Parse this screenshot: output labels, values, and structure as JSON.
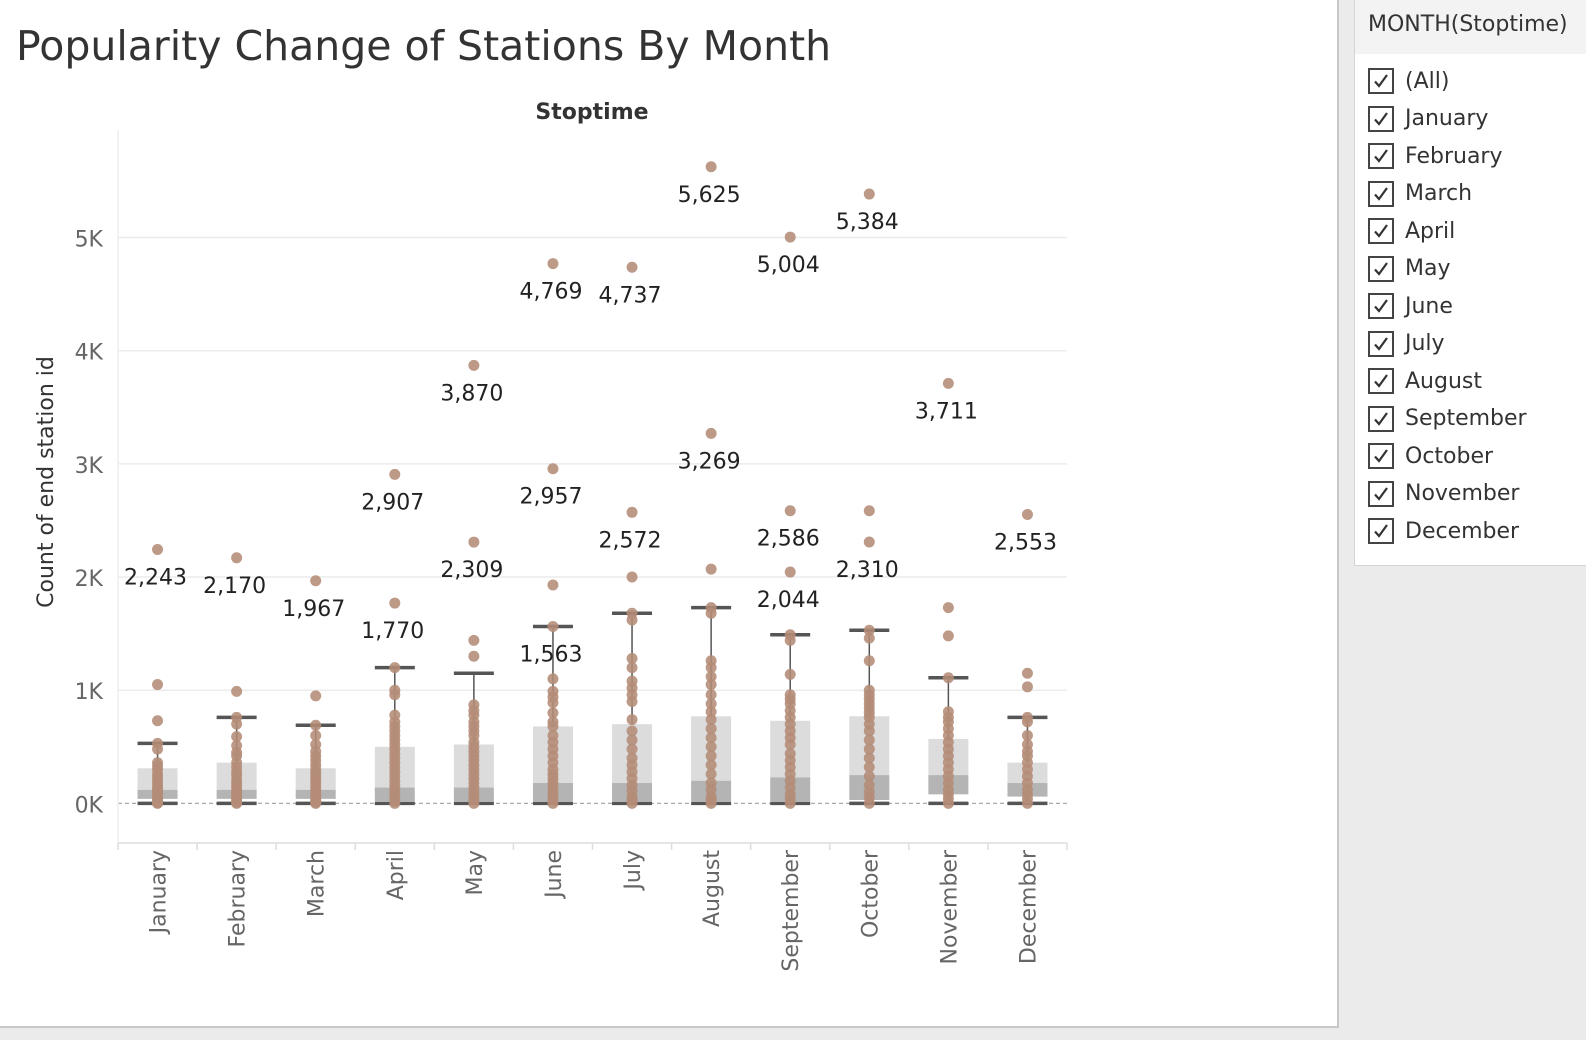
{
  "chart_title": "Popularity Change of Stations By Month",
  "filter": {
    "title": "MONTH(Stoptime)",
    "items": [
      {
        "label": "(All)",
        "checked": true
      },
      {
        "label": "January",
        "checked": true
      },
      {
        "label": "February",
        "checked": true
      },
      {
        "label": "March",
        "checked": true
      },
      {
        "label": "April",
        "checked": true
      },
      {
        "label": "May",
        "checked": true
      },
      {
        "label": "June",
        "checked": true
      },
      {
        "label": "July",
        "checked": true
      },
      {
        "label": "August",
        "checked": true
      },
      {
        "label": "September",
        "checked": true
      },
      {
        "label": "October",
        "checked": true
      },
      {
        "label": "November",
        "checked": true
      },
      {
        "label": "December",
        "checked": true
      }
    ]
  },
  "chart_data": {
    "type": "scatter",
    "title": "Popularity Change of Stations By Month",
    "column_header": "Stoptime",
    "ylabel": "Count of end station id",
    "ylim": [
      -350,
      5950
    ],
    "y_ticks": [
      0,
      1000,
      2000,
      3000,
      4000,
      5000
    ],
    "y_tick_labels": [
      "0K",
      "1K",
      "2K",
      "3K",
      "4K",
      "5K"
    ],
    "grid": true,
    "colors": {
      "point": "#b48c78",
      "box_lower": "#b4b4b4",
      "box_upper": "#dcdcdc",
      "whisker": "#555555",
      "gridline": "#ececec",
      "zero_line": "#aaaaaa"
    },
    "categories": [
      "January",
      "February",
      "March",
      "April",
      "May",
      "June",
      "July",
      "August",
      "September",
      "October",
      "November",
      "December"
    ],
    "labeled_points": [
      {
        "category": "January",
        "value": 2243,
        "label": "2,243"
      },
      {
        "category": "February",
        "value": 2170,
        "label": "2,170"
      },
      {
        "category": "March",
        "value": 1967,
        "label": "1,967"
      },
      {
        "category": "April",
        "value": 2907,
        "label": "2,907"
      },
      {
        "category": "April",
        "value": 1770,
        "label": "1,770"
      },
      {
        "category": "May",
        "value": 3870,
        "label": "3,870"
      },
      {
        "category": "May",
        "value": 2309,
        "label": "2,309"
      },
      {
        "category": "June",
        "value": 4769,
        "label": "4,769"
      },
      {
        "category": "June",
        "value": 2957,
        "label": "2,957"
      },
      {
        "category": "June",
        "value": 1563,
        "label": "1,563"
      },
      {
        "category": "July",
        "value": 4737,
        "label": "4,737"
      },
      {
        "category": "July",
        "value": 2572,
        "label": "2,572"
      },
      {
        "category": "August",
        "value": 5625,
        "label": "5,625"
      },
      {
        "category": "August",
        "value": 3269,
        "label": "3,269"
      },
      {
        "category": "September",
        "value": 5004,
        "label": "5,004"
      },
      {
        "category": "September",
        "value": 2586,
        "label": "2,586"
      },
      {
        "category": "September",
        "value": 2044,
        "label": "2,044"
      },
      {
        "category": "October",
        "value": 5384,
        "label": "5,384"
      },
      {
        "category": "October",
        "value": 2310,
        "label": "2,310"
      },
      {
        "category": "November",
        "value": 3711,
        "label": "3,711"
      },
      {
        "category": "December",
        "value": 2553,
        "label": "2,553"
      }
    ],
    "boxes": [
      {
        "category": "January",
        "whisker_low": 0,
        "q1": 40,
        "median": 120,
        "q3": 310,
        "whisker_high": 530
      },
      {
        "category": "February",
        "whisker_low": 0,
        "q1": 40,
        "median": 120,
        "q3": 360,
        "whisker_high": 760
      },
      {
        "category": "March",
        "whisker_low": 0,
        "q1": 40,
        "median": 120,
        "q3": 310,
        "whisker_high": 690
      },
      {
        "category": "April",
        "whisker_low": 0,
        "q1": 20,
        "median": 140,
        "q3": 500,
        "whisker_high": 1200
      },
      {
        "category": "May",
        "whisker_low": 0,
        "q1": 20,
        "median": 140,
        "q3": 520,
        "whisker_high": 1150
      },
      {
        "category": "June",
        "whisker_low": 0,
        "q1": 20,
        "median": 180,
        "q3": 680,
        "whisker_high": 1563
      },
      {
        "category": "July",
        "whisker_low": 0,
        "q1": 20,
        "median": 180,
        "q3": 700,
        "whisker_high": 1680
      },
      {
        "category": "August",
        "whisker_low": 0,
        "q1": 20,
        "median": 200,
        "q3": 770,
        "whisker_high": 1730
      },
      {
        "category": "September",
        "whisker_low": 0,
        "q1": 20,
        "median": 230,
        "q3": 730,
        "whisker_high": 1490
      },
      {
        "category": "October",
        "whisker_low": 0,
        "q1": 30,
        "median": 250,
        "q3": 770,
        "whisker_high": 1530
      },
      {
        "category": "November",
        "whisker_low": 0,
        "q1": 80,
        "median": 250,
        "q3": 570,
        "whisker_high": 1110
      },
      {
        "category": "December",
        "whisker_low": 0,
        "q1": 60,
        "median": 180,
        "q3": 360,
        "whisker_high": 760
      }
    ],
    "points": {
      "January": [
        2243,
        1050,
        730,
        530,
        480,
        360,
        330,
        300,
        260,
        230,
        200,
        170,
        140,
        120,
        100,
        80,
        60,
        40,
        20,
        10,
        5,
        0
      ],
      "February": [
        2170,
        990,
        760,
        700,
        590,
        510,
        450,
        420,
        360,
        320,
        280,
        250,
        210,
        180,
        150,
        120,
        100,
        80,
        60,
        40,
        20,
        10,
        0
      ],
      "March": [
        1967,
        950,
        690,
        600,
        520,
        460,
        420,
        380,
        340,
        300,
        270,
        240,
        210,
        180,
        150,
        120,
        100,
        80,
        60,
        40,
        20,
        10,
        0
      ],
      "April": [
        2907,
        1770,
        1200,
        1000,
        960,
        780,
        720,
        680,
        640,
        600,
        560,
        520,
        480,
        440,
        400,
        360,
        320,
        280,
        240,
        200,
        160,
        120,
        80,
        40,
        20,
        0
      ],
      "May": [
        3870,
        2309,
        1440,
        1300,
        870,
        820,
        780,
        720,
        680,
        640,
        600,
        540,
        500,
        460,
        420,
        380,
        340,
        300,
        260,
        220,
        180,
        140,
        100,
        60,
        30,
        0
      ],
      "June": [
        4769,
        2957,
        1930,
        1563,
        1100,
        990,
        940,
        890,
        800,
        720,
        680,
        600,
        540,
        480,
        420,
        360,
        300,
        260,
        220,
        180,
        140,
        100,
        60,
        30,
        0
      ],
      "July": [
        4737,
        2572,
        2000,
        1680,
        1620,
        1280,
        1200,
        1080,
        1020,
        960,
        900,
        740,
        640,
        560,
        480,
        400,
        340,
        280,
        220,
        160,
        110,
        60,
        30,
        0
      ],
      "August": [
        5625,
        3269,
        2070,
        1730,
        1680,
        1260,
        1200,
        1120,
        1050,
        960,
        880,
        810,
        740,
        660,
        580,
        500,
        420,
        340,
        260,
        180,
        120,
        60,
        30,
        0
      ],
      "September": [
        5004,
        2586,
        2044,
        1490,
        1440,
        1140,
        960,
        920,
        880,
        820,
        760,
        700,
        640,
        580,
        520,
        440,
        380,
        320,
        260,
        200,
        140,
        80,
        40,
        0
      ],
      "October": [
        5384,
        2586,
        2310,
        1530,
        1460,
        1260,
        1000,
        960,
        920,
        880,
        840,
        800,
        760,
        700,
        640,
        560,
        480,
        400,
        320,
        240,
        160,
        100,
        50,
        0
      ],
      "November": [
        3711,
        1730,
        1480,
        1110,
        810,
        760,
        720,
        660,
        600,
        540,
        480,
        420,
        360,
        300,
        240,
        180,
        120,
        80,
        40,
        0
      ],
      "December": [
        2553,
        1150,
        1030,
        760,
        720,
        600,
        520,
        460,
        420,
        360,
        300,
        240,
        180,
        120,
        80,
        40,
        0
      ]
    }
  }
}
